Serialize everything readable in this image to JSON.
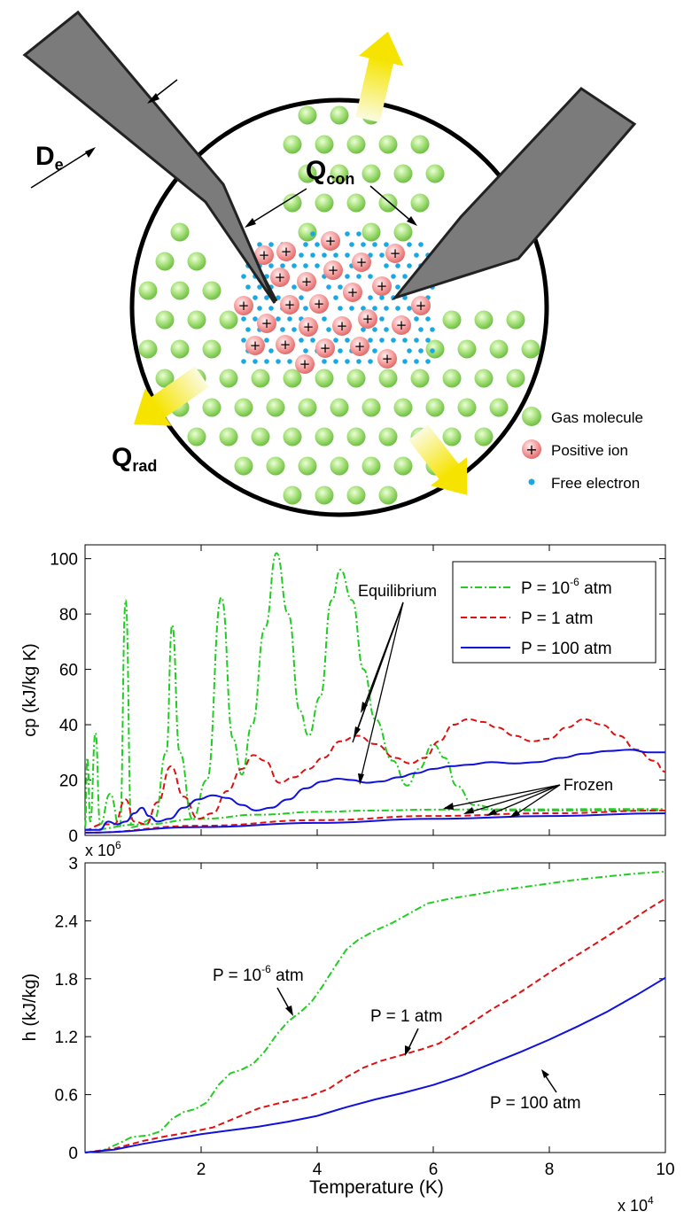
{
  "diagram": {
    "label_de": "D",
    "label_de_sub": "e",
    "label_qcon": "Q",
    "label_qcon_sub": "con",
    "label_qrad": "Q",
    "label_qrad_sub": "rad",
    "legend": [
      {
        "label": "Gas molecule",
        "kind": "gas",
        "color": "#8fd65a"
      },
      {
        "label": "Positive ion",
        "kind": "ion",
        "color": "#f07878"
      },
      {
        "label": "Free electron",
        "kind": "electron",
        "color": "#1aa8e0"
      }
    ],
    "arrow_color": "#f5e100"
  },
  "chart_data": [
    {
      "type": "line",
      "ylabel": "cp (kJ/kg K)",
      "xlim": [
        0,
        100000
      ],
      "ylim": [
        0,
        105
      ],
      "yticks": [
        "0",
        "20",
        "40",
        "60",
        "80",
        "100"
      ],
      "legend_position": "top-right",
      "annotations": [
        "Equilibrium",
        "Frozen"
      ],
      "series": [
        {
          "name": "P = 10^-6 atm",
          "name_base": "P = 10",
          "name_exp": "-6",
          "name_tail": " atm",
          "color": "#22cc22",
          "dash": "dashdot",
          "equilibrium": [
            [
              0,
              3
            ],
            [
              400,
              28
            ],
            [
              900,
              5
            ],
            [
              1800,
              37
            ],
            [
              2600,
              4
            ],
            [
              4300,
              15
            ],
            [
              6000,
              3
            ],
            [
              7000,
              85
            ],
            [
              8000,
              3
            ],
            [
              12000,
              6
            ],
            [
              14000,
              30
            ],
            [
              15000,
              76
            ],
            [
              16300,
              30
            ],
            [
              18500,
              6
            ],
            [
              21000,
              20
            ],
            [
              23500,
              86
            ],
            [
              25500,
              35
            ],
            [
              27000,
              22
            ],
            [
              28800,
              40
            ],
            [
              31000,
              75
            ],
            [
              33000,
              102
            ],
            [
              35000,
              80
            ],
            [
              37000,
              45
            ],
            [
              38500,
              36
            ],
            [
              40500,
              50
            ],
            [
              42500,
              85
            ],
            [
              44000,
              96
            ],
            [
              46000,
              85
            ],
            [
              48000,
              60
            ],
            [
              50000,
              42
            ],
            [
              53000,
              27
            ],
            [
              55500,
              18
            ],
            [
              57500,
              24
            ],
            [
              60000,
              33
            ],
            [
              62000,
              28
            ],
            [
              64000,
              18
            ],
            [
              67000,
              11
            ],
            [
              72000,
              9
            ],
            [
              80000,
              9
            ],
            [
              90000,
              9
            ],
            [
              100000,
              9
            ]
          ],
          "frozen": [
            [
              0,
              2
            ],
            [
              10000,
              4
            ],
            [
              20000,
              6
            ],
            [
              30000,
              7.5
            ],
            [
              40000,
              8.5
            ],
            [
              50000,
              9
            ],
            [
              60000,
              9.3
            ],
            [
              70000,
              9.4
            ],
            [
              80000,
              9.4
            ],
            [
              90000,
              9.5
            ],
            [
              100000,
              9.5
            ]
          ],
          "h": [
            [
              0,
              0
            ],
            [
              3000,
              0.02
            ],
            [
              6000,
              0.1
            ],
            [
              8000,
              0.16
            ],
            [
              11000,
              0.18
            ],
            [
              13000,
              0.22
            ],
            [
              15000,
              0.35
            ],
            [
              17000,
              0.42
            ],
            [
              19000,
              0.45
            ],
            [
              21000,
              0.52
            ],
            [
              23000,
              0.7
            ],
            [
              25000,
              0.82
            ],
            [
              27000,
              0.86
            ],
            [
              29000,
              0.92
            ],
            [
              31000,
              1.05
            ],
            [
              33000,
              1.22
            ],
            [
              35000,
              1.36
            ],
            [
              37000,
              1.45
            ],
            [
              39000,
              1.56
            ],
            [
              41000,
              1.73
            ],
            [
              43000,
              1.92
            ],
            [
              45000,
              2.1
            ],
            [
              47000,
              2.2
            ],
            [
              50000,
              2.3
            ],
            [
              53000,
              2.38
            ],
            [
              56000,
              2.48
            ],
            [
              59000,
              2.58
            ],
            [
              63000,
              2.63
            ],
            [
              67000,
              2.67
            ],
            [
              72000,
              2.72
            ],
            [
              78000,
              2.77
            ],
            [
              84000,
              2.82
            ],
            [
              90000,
              2.86
            ],
            [
              95000,
              2.89
            ],
            [
              100000,
              2.91
            ]
          ]
        },
        {
          "name": "P = 1 atm",
          "color": "#dd1111",
          "dash": "dashed",
          "equilibrium": [
            [
              0,
              2
            ],
            [
              3000,
              4
            ],
            [
              5000,
              4
            ],
            [
              7000,
              13
            ],
            [
              8500,
              5
            ],
            [
              10500,
              4
            ],
            [
              12500,
              12
            ],
            [
              14800,
              25
            ],
            [
              17000,
              14
            ],
            [
              19500,
              6
            ],
            [
              22000,
              8
            ],
            [
              24500,
              16
            ],
            [
              27000,
              24
            ],
            [
              29000,
              29
            ],
            [
              31000,
              27
            ],
            [
              33500,
              19
            ],
            [
              36000,
              21
            ],
            [
              38500,
              24
            ],
            [
              41000,
              28
            ],
            [
              44000,
              34
            ],
            [
              47000,
              36
            ],
            [
              50000,
              33
            ],
            [
              53500,
              28
            ],
            [
              56000,
              26
            ],
            [
              58500,
              28
            ],
            [
              61000,
              34
            ],
            [
              63500,
              40
            ],
            [
              66000,
              42
            ],
            [
              68500,
              41
            ],
            [
              71000,
              39
            ],
            [
              74000,
              36
            ],
            [
              77000,
              34
            ],
            [
              80000,
              35
            ],
            [
              83000,
              39
            ],
            [
              86000,
              42
            ],
            [
              89000,
              40
            ],
            [
              92000,
              36
            ],
            [
              95000,
              31
            ],
            [
              98000,
              27
            ],
            [
              100000,
              23
            ]
          ],
          "frozen": [
            [
              0,
              1
            ],
            [
              20000,
              3.5
            ],
            [
              40000,
              5.5
            ],
            [
              60000,
              7
            ],
            [
              80000,
              8
            ],
            [
              100000,
              9
            ]
          ],
          "h": [
            [
              0,
              0
            ],
            [
              5000,
              0.04
            ],
            [
              10000,
              0.12
            ],
            [
              14000,
              0.17
            ],
            [
              18000,
              0.21
            ],
            [
              22000,
              0.26
            ],
            [
              26000,
              0.36
            ],
            [
              30000,
              0.46
            ],
            [
              34000,
              0.52
            ],
            [
              38000,
              0.57
            ],
            [
              42000,
              0.66
            ],
            [
              45000,
              0.78
            ],
            [
              48000,
              0.88
            ],
            [
              51000,
              0.95
            ],
            [
              54000,
              1.0
            ],
            [
              58000,
              1.07
            ],
            [
              61000,
              1.13
            ],
            [
              64000,
              1.24
            ],
            [
              67000,
              1.36
            ],
            [
              70000,
              1.48
            ],
            [
              74000,
              1.62
            ],
            [
              78000,
              1.78
            ],
            [
              82000,
              1.94
            ],
            [
              86000,
              2.09
            ],
            [
              90000,
              2.24
            ],
            [
              94000,
              2.4
            ],
            [
              97000,
              2.52
            ],
            [
              100000,
              2.63
            ]
          ]
        },
        {
          "name": "P = 100 atm",
          "color": "#1111dd",
          "dash": "solid",
          "equilibrium": [
            [
              0,
              2
            ],
            [
              2500,
              2
            ],
            [
              4000,
              5
            ],
            [
              5500,
              4
            ],
            [
              7000,
              5
            ],
            [
              8500,
              8
            ],
            [
              9800,
              10
            ],
            [
              11000,
              7
            ],
            [
              12500,
              5
            ],
            [
              14500,
              6
            ],
            [
              17000,
              10
            ],
            [
              19500,
              13
            ],
            [
              22000,
              14.5
            ],
            [
              24500,
              13.5
            ],
            [
              27000,
              11
            ],
            [
              29500,
              9
            ],
            [
              32000,
              10
            ],
            [
              35000,
              13
            ],
            [
              38000,
              17
            ],
            [
              41000,
              19.5
            ],
            [
              43500,
              20.5
            ],
            [
              46000,
              20
            ],
            [
              48500,
              19
            ],
            [
              51000,
              19.5
            ],
            [
              54000,
              21
            ],
            [
              57000,
              22.5
            ],
            [
              60000,
              24
            ],
            [
              63000,
              25
            ],
            [
              66000,
              25.5
            ],
            [
              70000,
              26.5
            ],
            [
              74000,
              26
            ],
            [
              78000,
              26.5
            ],
            [
              82000,
              28
            ],
            [
              86000,
              29.5
            ],
            [
              90000,
              30.5
            ],
            [
              94000,
              31
            ],
            [
              97000,
              30
            ],
            [
              100000,
              30
            ]
          ],
          "frozen": [
            [
              0,
              1
            ],
            [
              20000,
              3
            ],
            [
              40000,
              4.5
            ],
            [
              60000,
              6
            ],
            [
              80000,
              7
            ],
            [
              100000,
              8
            ]
          ],
          "h": [
            [
              0,
              0
            ],
            [
              5000,
              0.03
            ],
            [
              10000,
              0.09
            ],
            [
              15000,
              0.14
            ],
            [
              20000,
              0.19
            ],
            [
              25000,
              0.23
            ],
            [
              30000,
              0.27
            ],
            [
              35000,
              0.32
            ],
            [
              40000,
              0.38
            ],
            [
              45000,
              0.47
            ],
            [
              50000,
              0.55
            ],
            [
              55000,
              0.62
            ],
            [
              60000,
              0.7
            ],
            [
              65000,
              0.8
            ],
            [
              70000,
              0.92
            ],
            [
              75000,
              1.04
            ],
            [
              80000,
              1.17
            ],
            [
              85000,
              1.31
            ],
            [
              90000,
              1.46
            ],
            [
              95000,
              1.63
            ],
            [
              100000,
              1.81
            ]
          ]
        }
      ]
    },
    {
      "type": "line",
      "ylabel": "h (kJ/kg)",
      "xlabel": "Temperature (K)",
      "xlim": [
        0,
        100000
      ],
      "ylim": [
        0,
        3
      ],
      "xticks": [
        "2",
        "4",
        "6",
        "8",
        "10"
      ],
      "yticks": [
        "0",
        "0.6",
        "1.2",
        "1.8",
        "2.4",
        "3"
      ],
      "x_multiplier": "x 10",
      "x_multiplier_exp": "4",
      "y_multiplier": "x 10",
      "y_multiplier_exp": "6",
      "labels": [
        {
          "base": "P = 10",
          "exp": "-6",
          "tail": " atm"
        },
        {
          "base": "P = 1 atm",
          "exp": "",
          "tail": ""
        },
        {
          "base": "P = 100 atm",
          "exp": "",
          "tail": ""
        }
      ]
    }
  ]
}
